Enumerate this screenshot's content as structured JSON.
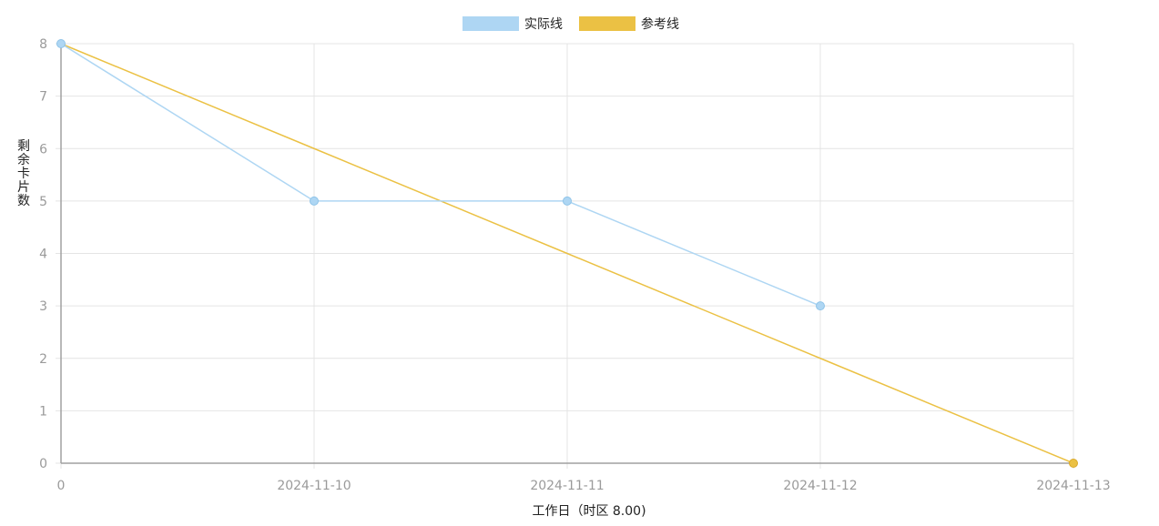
{
  "chart_data": {
    "type": "line",
    "x": [
      "0",
      "2024-11-10",
      "2024-11-11",
      "2024-11-12",
      "2024-11-13"
    ],
    "xlabel": "工作日（时区 8.00)",
    "ylabel": "剩余卡片数",
    "ylim": [
      0,
      8
    ],
    "yticks": [
      0,
      1,
      2,
      3,
      4,
      5,
      6,
      7,
      8
    ],
    "grid": true,
    "legend_position": "top-center",
    "series": [
      {
        "name": "实际线",
        "color": "#aed6f3",
        "values": [
          8,
          5,
          5,
          3,
          null
        ]
      },
      {
        "name": "参考线",
        "color": "#ebc144",
        "values": [
          8,
          6,
          4,
          2,
          0
        ]
      }
    ]
  },
  "colors": {
    "grid": "#e4e4e4",
    "axis": "#a0a0a0",
    "tick_text": "#9a9a9a",
    "label_text": "#222222"
  }
}
